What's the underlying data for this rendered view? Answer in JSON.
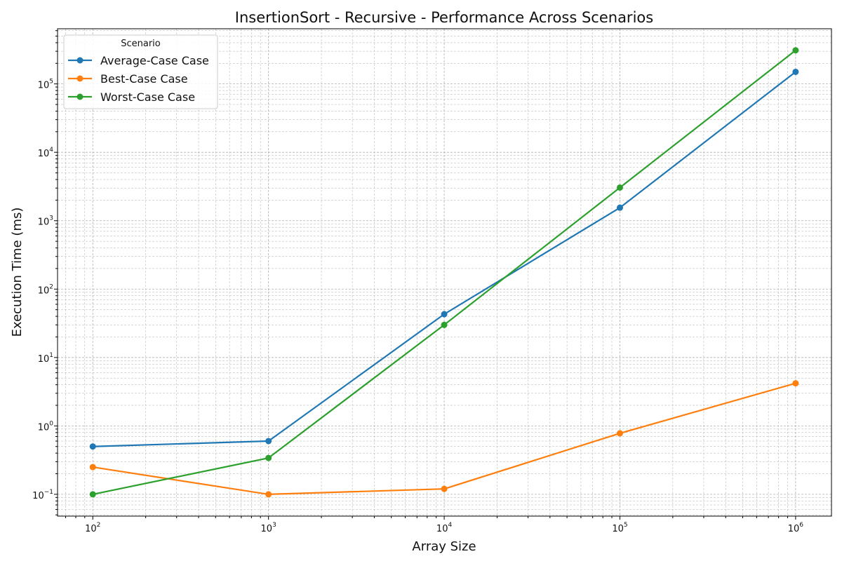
{
  "chart_data": {
    "type": "line",
    "title": "InsertionSort - Recursive - Performance Across Scenarios",
    "xlabel": "Array Size",
    "ylabel": "Execution Time (ms)",
    "xscale": "log",
    "yscale": "log",
    "xlim": [
      63,
      1600000
    ],
    "ylim": [
      0.048,
      640000
    ],
    "x": [
      100,
      1000,
      10000,
      100000,
      1000000
    ],
    "xticks": [
      100,
      1000,
      10000,
      100000,
      1000000
    ],
    "yticks": [
      0.1,
      1,
      10,
      100,
      1000,
      10000,
      100000
    ],
    "grid": true,
    "legend": {
      "title": "Scenario",
      "placement": "top-left"
    },
    "series": [
      {
        "name": "Average-Case Case",
        "color": "#1f77b4",
        "values": [
          0.5,
          0.6,
          43,
          1550,
          150000
        ]
      },
      {
        "name": "Best-Case Case",
        "color": "#ff7f0e",
        "values": [
          0.25,
          0.1,
          0.12,
          0.78,
          4.2
        ]
      },
      {
        "name": "Worst-Case Case",
        "color": "#2ca02c",
        "values": [
          0.1,
          0.34,
          30,
          3050,
          310000
        ]
      }
    ]
  }
}
